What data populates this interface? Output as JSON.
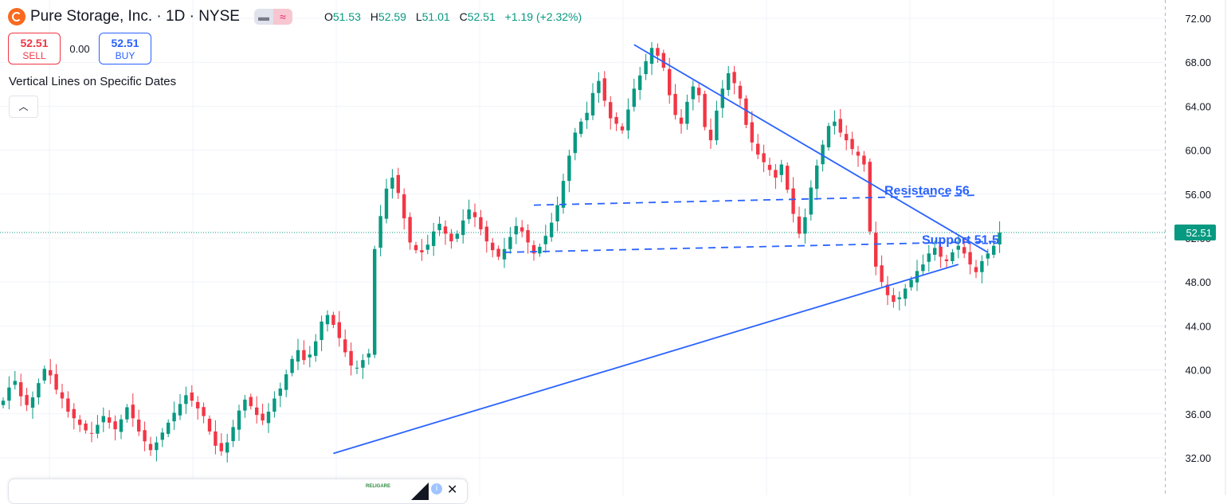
{
  "header": {
    "symbol_title": "Pure Storage, Inc. · 1D · NYSE",
    "ohlc": [
      {
        "key": "O",
        "value": "51.53"
      },
      {
        "key": "H",
        "value": "52.59"
      },
      {
        "key": "L",
        "value": "51.01"
      },
      {
        "key": "C",
        "value": "52.51"
      }
    ],
    "change": "+1.19 (+2.32%)"
  },
  "trade": {
    "sell_price": "52.51",
    "sell_label": "SELL",
    "spread": "0.00",
    "buy_price": "52.51",
    "buy_label": "BUY"
  },
  "indicator_label": "Vertical Lines on Specific Dates",
  "collapse_icon": "chevron-up-icon",
  "ad": {
    "close_label": "✕",
    "info_label": "i",
    "logo_text": "RELIGARE"
  },
  "colors": {
    "up": "#089981",
    "down": "#f23645",
    "trendline": "#2962ff",
    "grid": "#f0f3fa",
    "price_tag": "#089981"
  },
  "chart_data": {
    "type": "candlestick",
    "symbol": "Pure Storage, Inc.",
    "interval": "1D",
    "exchange": "NYSE",
    "ylim": [
      29,
      73
    ],
    "yticks": [
      "72.00",
      "68.00",
      "64.00",
      "60.00",
      "56.00",
      "52.00",
      "48.00",
      "44.00",
      "40.00",
      "36.00",
      "32.00"
    ],
    "last_price": 52.51,
    "last_price_label": "52.51",
    "grid": true,
    "closes": [
      37.2,
      38.4,
      39.0,
      37.6,
      36.8,
      37.5,
      38.8,
      40.1,
      39.5,
      38.2,
      37.4,
      36.2,
      35.6,
      35.0,
      34.5,
      34.2,
      35.0,
      35.8,
      35.2,
      34.6,
      35.5,
      36.6,
      35.6,
      34.4,
      33.5,
      32.7,
      33.4,
      34.3,
      35.2,
      36.1,
      36.9,
      37.7,
      37.2,
      36.5,
      35.8,
      34.4,
      33.1,
      32.6,
      33.4,
      34.8,
      36.3,
      37.3,
      36.7,
      35.9,
      35.4,
      36.2,
      37.4,
      38.3,
      39.6,
      41.0,
      41.8,
      40.9,
      41.4,
      42.6,
      44.4,
      45.0,
      44.1,
      42.9,
      41.6,
      40.4,
      40.2,
      40.9,
      41.5,
      51.0,
      54.0,
      56.5,
      57.5,
      56.1,
      53.8,
      51.6,
      50.9,
      50.7,
      51.4,
      52.6,
      53.3,
      52.4,
      51.7,
      52.4,
      53.6,
      54.6,
      53.9,
      52.8,
      51.7,
      50.9,
      50.3,
      51.0,
      52.1,
      53.1,
      52.6,
      51.6,
      50.6,
      51.2,
      52.2,
      53.4,
      55.0,
      57.2,
      59.5,
      61.6,
      62.6,
      63.4,
      65.2,
      66.3,
      64.5,
      62.9,
      62.4,
      61.8,
      63.7,
      65.6,
      66.8,
      68.1,
      69.3,
      68.6,
      67.5,
      65.0,
      63.2,
      62.4,
      64.4,
      65.8,
      65.0,
      62.1,
      60.9,
      63.6,
      65.6,
      67.0,
      66.1,
      64.7,
      62.3,
      60.7,
      59.6,
      58.9,
      58.2,
      57.5,
      58.7,
      56.4,
      54.2,
      52.4,
      53.9,
      56.6,
      58.6,
      60.5,
      62.2,
      62.6,
      61.6,
      60.9,
      60.1,
      59.5,
      58.7,
      52.6,
      49.4,
      48.0,
      46.8,
      46.2,
      46.6,
      47.4,
      48.2,
      49.0,
      49.6,
      50.6,
      51.1,
      50.3,
      49.9,
      50.7,
      51.3,
      50.6,
      49.6,
      48.9,
      49.9,
      50.6,
      51.3,
      52.51
    ],
    "series": [
      {
        "name": "Pure Storage, Inc.",
        "type": "candlestick"
      }
    ],
    "trendlines": [
      {
        "kind": "descending",
        "from": {
          "bar": 107,
          "price": 69.6
        },
        "to": {
          "bar": 167,
          "price": 50.7
        }
      },
      {
        "kind": "ascending",
        "from": {
          "bar": 56,
          "price": 32.4
        },
        "to": {
          "bar": 162,
          "price": 49.6
        }
      },
      {
        "kind": "horizontal-dashed",
        "label": "Resistance 56",
        "from": {
          "bar": 90,
          "price": 55.0
        },
        "to": {
          "bar": 165,
          "price": 55.9
        }
      },
      {
        "kind": "horizontal-dashed",
        "label": "Support 51.5",
        "from": {
          "bar": 85,
          "price": 50.7
        },
        "to": {
          "bar": 169,
          "price": 51.7
        }
      }
    ],
    "annotations": [
      {
        "text": "Resistance 56",
        "price": 56.4
      },
      {
        "text": "Support 51.5",
        "price": 51.9
      }
    ]
  }
}
